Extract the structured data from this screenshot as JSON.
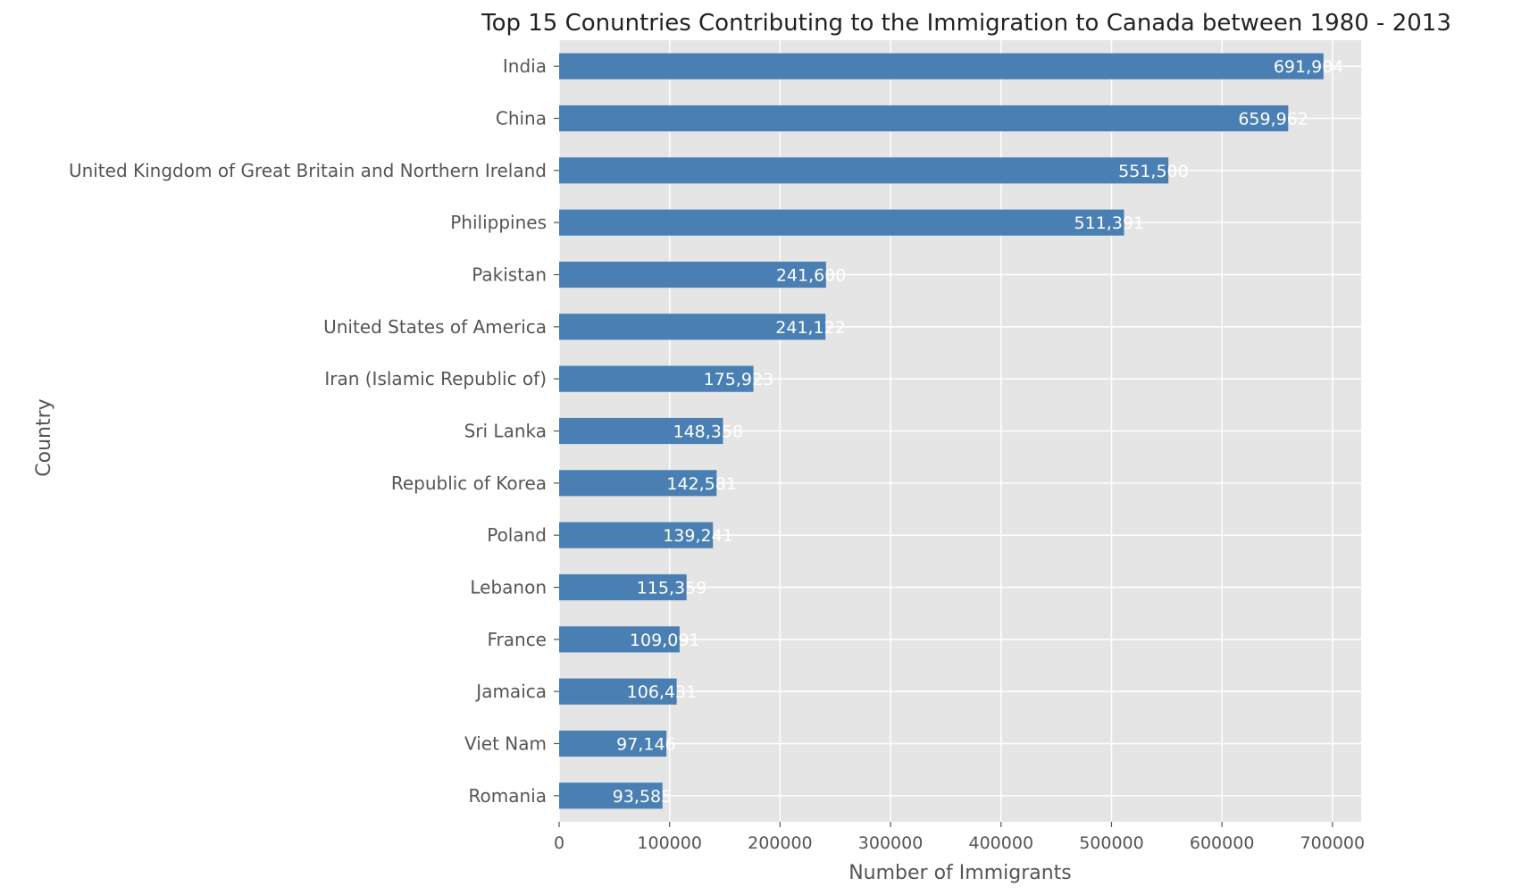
{
  "chart_data": {
    "type": "bar",
    "orientation": "horizontal",
    "title": "Top 15 Conuntries Contributing to the Immigration to Canada between 1980 - 2013",
    "xlabel": "Number of Immigrants",
    "ylabel": "Country",
    "xlim": [
      0,
      726000
    ],
    "grid": true,
    "xticks": [
      0,
      100000,
      200000,
      300000,
      400000,
      500000,
      600000,
      700000
    ],
    "xtick_labels": [
      "0",
      "100000",
      "200000",
      "300000",
      "400000",
      "500000",
      "600000",
      "700000"
    ],
    "bar_color": "#4a7fb3",
    "background_color": "#e5e5e5",
    "categories": [
      "India",
      "China",
      "United Kingdom of Great Britain and Northern Ireland",
      "Philippines",
      "Pakistan",
      "United States of America",
      "Iran (Islamic Republic of)",
      "Sri Lanka",
      "Republic of Korea",
      "Poland",
      "Lebanon",
      "France",
      "Jamaica",
      "Viet Nam",
      "Romania"
    ],
    "values": [
      691904,
      659962,
      551500,
      511391,
      241600,
      241122,
      175923,
      148358,
      142581,
      139241,
      115359,
      109091,
      106431,
      97146,
      93585
    ],
    "data_labels": [
      "691,904",
      "659,962",
      "551,500",
      "511,391",
      "241,600",
      "241,122",
      "175,923",
      "148,358",
      "142,581",
      "139,241",
      "115,359",
      "109,091",
      "106,431",
      "97,146",
      "93,585"
    ]
  }
}
